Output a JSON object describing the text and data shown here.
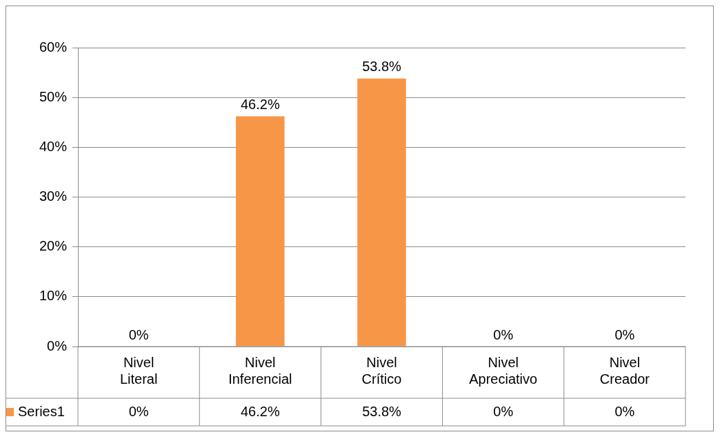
{
  "chart_data": {
    "type": "bar",
    "categories": [
      "Nivel Literal",
      "Nivel Inferencial",
      "Nivel Crítico",
      "Nivel Apreciativo",
      "Nivel Creador"
    ],
    "series": [
      {
        "name": "Series1",
        "color": "#f79646",
        "values": [
          0,
          46.2,
          53.8,
          0,
          0
        ],
        "value_labels": [
          "0%",
          "46.2%",
          "53.8%",
          "0%",
          "0%"
        ]
      }
    ],
    "ylim": [
      0,
      60
    ],
    "yticks": [
      {
        "value": 0,
        "label": "0%"
      },
      {
        "value": 10,
        "label": "10%"
      },
      {
        "value": 20,
        "label": "20%"
      },
      {
        "value": 30,
        "label": "30%"
      },
      {
        "value": 40,
        "label": "40%"
      },
      {
        "value": 50,
        "label": "50%"
      },
      {
        "value": 60,
        "label": "60%"
      }
    ],
    "grid": "y"
  }
}
